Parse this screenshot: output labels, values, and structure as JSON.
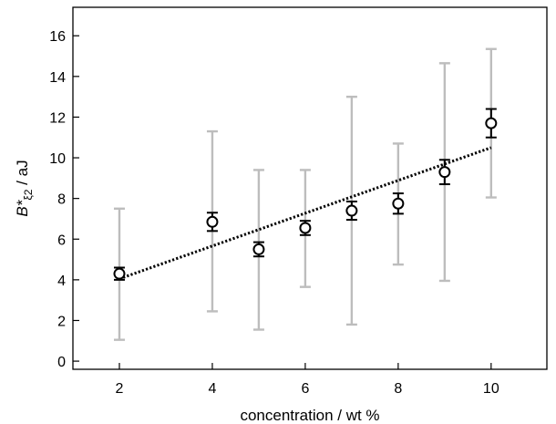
{
  "chart_data": {
    "type": "scatter",
    "xlabel": "concentration / wt %",
    "ylabel_main": "B*",
    "ylabel_sub": "ξ2",
    "ylabel_unit": " / aJ",
    "xlim": [
      1.0,
      11.2
    ],
    "ylim": [
      -0.4,
      17.4
    ],
    "xticks": [
      2,
      4,
      6,
      8,
      10
    ],
    "yticks": [
      0,
      2,
      4,
      6,
      8,
      10,
      12,
      14,
      16
    ],
    "grid": false,
    "series": [
      {
        "marker": "open-circle",
        "x": [
          2,
          4,
          5,
          6,
          7,
          8,
          9,
          10
        ],
        "y": [
          4.3,
          6.85,
          5.5,
          6.55,
          7.4,
          7.75,
          9.3,
          11.7
        ],
        "error_small": [
          0.3,
          0.45,
          0.35,
          0.35,
          0.45,
          0.5,
          0.6,
          0.7
        ],
        "error_large_low": [
          1.05,
          2.45,
          1.55,
          3.65,
          1.8,
          4.75,
          3.95,
          8.05
        ],
        "error_large_high": [
          7.5,
          11.3,
          9.4,
          9.4,
          13.0,
          10.7,
          14.65,
          15.35
        ]
      }
    ],
    "fit_line": {
      "style": "dotted",
      "x": [
        2,
        10
      ],
      "y": [
        4.05,
        10.5
      ]
    },
    "colors": {
      "markers": "#000000",
      "small_error": "#000000",
      "large_error": "#bdbdbd",
      "fit": "#000000"
    }
  }
}
